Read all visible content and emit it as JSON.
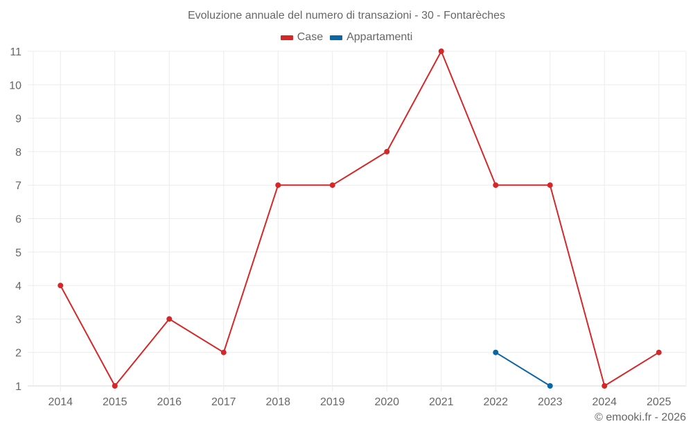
{
  "title": "Evoluzione annuale del numero di transazioni - 30 - Fontarèches",
  "legend": [
    {
      "label": "Case",
      "color": "#d62728"
    },
    {
      "label": "Appartamenti",
      "color": "#0b66a6"
    }
  ],
  "copyright": "© emooki.fr - 2026",
  "chart_data": {
    "type": "line",
    "title": "Evoluzione annuale del numero di transazioni - 30 - Fontarèches",
    "xlabel": "",
    "ylabel": "",
    "categories": [
      "2014",
      "2015",
      "2016",
      "2017",
      "2018",
      "2019",
      "2020",
      "2021",
      "2022",
      "2023",
      "2024",
      "2025"
    ],
    "series": [
      {
        "name": "Case",
        "color": "#d62728",
        "values": [
          4,
          1,
          3,
          2,
          7,
          7,
          8,
          11,
          7,
          7,
          1,
          2
        ]
      },
      {
        "name": "Appartamenti",
        "color": "#0b66a6",
        "values": [
          null,
          null,
          null,
          null,
          null,
          null,
          null,
          null,
          2,
          1,
          null,
          null
        ]
      }
    ],
    "ylim": [
      1,
      11
    ],
    "yticks": [
      1,
      2,
      3,
      4,
      5,
      6,
      7,
      8,
      9,
      10,
      11
    ],
    "grid": true,
    "legend_position": "top"
  }
}
